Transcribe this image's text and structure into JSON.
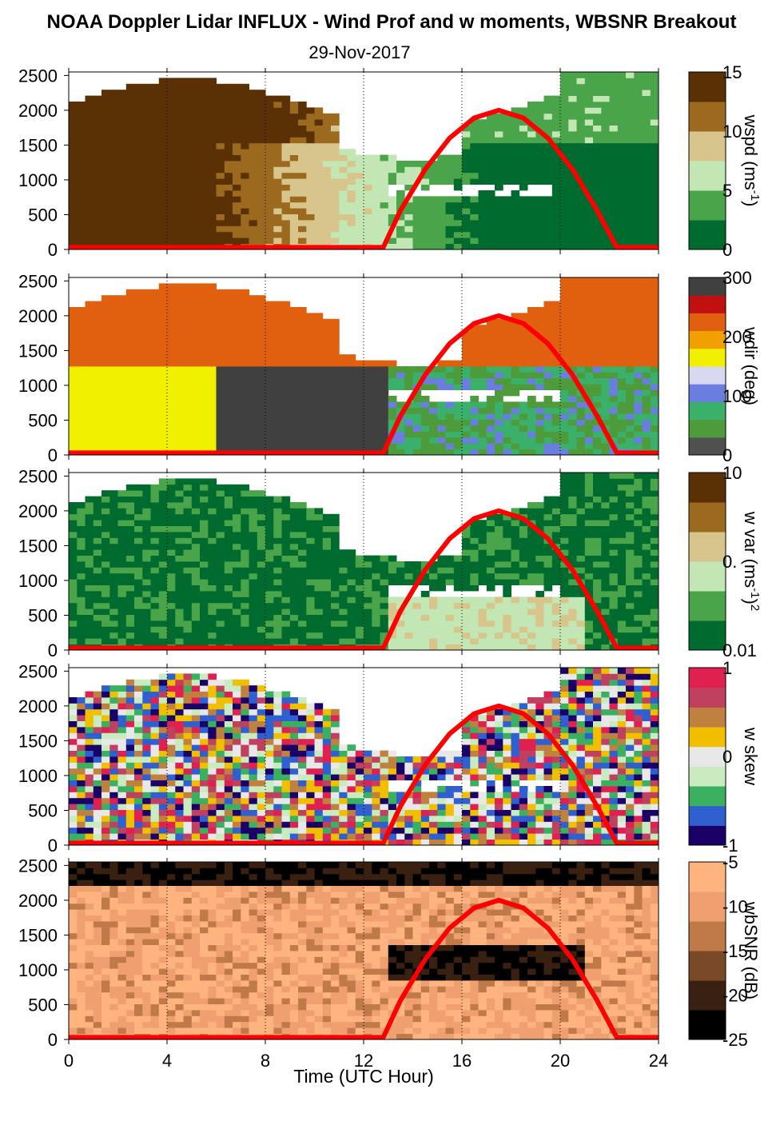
{
  "title": "NOAA Doppler Lidar INFLUX - Wind Prof and w moments, WBSNR Breakout",
  "subtitle": "29-Nov-2017",
  "chart_data": {
    "type": "heatmap",
    "x_axis": {
      "label": "Time (UTC Hour)",
      "range": [
        0,
        24
      ],
      "ticks": [
        0,
        4,
        8,
        12,
        16,
        20,
        24
      ],
      "grid": "dotted vertical at 4, 8, 12, 16, 20"
    },
    "y_axis": {
      "range": [
        0,
        2550
      ],
      "ticks": [
        0,
        500,
        1000,
        1500,
        2000,
        2500
      ]
    },
    "overlay_curve": {
      "name": "solar elevation (red curve)",
      "color": "#ff0000",
      "x": [
        0,
        12.8,
        13.5,
        14.5,
        15.5,
        16.5,
        17.5,
        18.5,
        19.5,
        20.5,
        21.5,
        22.3,
        24
      ],
      "y": [
        30,
        30,
        560,
        1150,
        1600,
        1890,
        2000,
        1890,
        1600,
        1150,
        560,
        30,
        30
      ]
    },
    "panels": [
      {
        "name": "wspd",
        "colorbar_label": "wspd (ms",
        "colorbar_sup": "-1",
        "colorbar_close": ")",
        "colorbar_ticks": [
          "15",
          "10",
          "5",
          "0"
        ],
        "colors": [
          "#006b2e",
          "#4aa54a",
          "#c2e6b4",
          "#d7c58c",
          "#9c6a1e",
          "#5a3005"
        ]
      },
      {
        "name": "wdir",
        "colorbar_label": "wdir (deg)",
        "colorbar_ticks": [
          "300",
          "200",
          "100",
          "0"
        ],
        "colors": [
          "#505050",
          "#4d9b3a",
          "#3ab06a",
          "#6a7ee0",
          "#d8d8f0",
          "#f0f000",
          "#f0a000",
          "#e06010",
          "#c01010",
          "#404040"
        ]
      },
      {
        "name": "w var",
        "colorbar_label": "w var (ms",
        "colorbar_sup": "-1",
        "colorbar_close": ")",
        "colorbar_sup2": "2",
        "colorbar_ticks": [
          "10",
          "0.",
          "0.01"
        ],
        "colors": [
          "#006b2e",
          "#4aa54a",
          "#c2e6b4",
          "#d7c58c",
          "#9c6a1e",
          "#5a3005"
        ]
      },
      {
        "name": "w skew",
        "colorbar_label": "w skew",
        "colorbar_ticks": [
          "1",
          "0",
          "-1"
        ],
        "colors": [
          "#1a0066",
          "#3060d0",
          "#3ab060",
          "#c8ecc0",
          "#e8e8e8",
          "#f0c000",
          "#c08040",
          "#c04060",
          "#e02050"
        ]
      },
      {
        "name": "wbSNR",
        "colorbar_label": "wbSNR (dB)",
        "colorbar_ticks": [
          "-5",
          "-10",
          "-15",
          "-20",
          "-25"
        ],
        "colors": [
          "#000000",
          "#3a2010",
          "#7a4a28",
          "#c07a4a",
          "#f0a070",
          "#ffb480"
        ]
      }
    ]
  }
}
